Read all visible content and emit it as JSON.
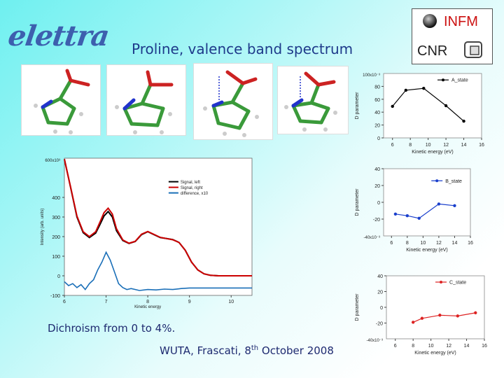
{
  "header": {
    "title": "Proline, valence band spectrum",
    "logo_text": "elettra"
  },
  "infm_box": {
    "infm_label": "INFM",
    "cnr_label": "CNR"
  },
  "bottom": {
    "dichroism": "Dichroism from 0 to 4%.",
    "footer_pre": "WUTA, Frascati, 8",
    "footer_sup": "th",
    "footer_post": " October 2008"
  },
  "colors": {
    "black_series": "#000000",
    "red_series": "#cc0000",
    "blue_series": "#1a6fb8"
  },
  "chart_data": [
    {
      "type": "line",
      "title": "",
      "xlabel": "Kinetic energy",
      "ylabel": "Intensity (arb. units)",
      "xlim": [
        6,
        10.5
      ],
      "ylim": [
        -100,
        600
      ],
      "y_multiplier": "600x10³",
      "x_ticks": [
        "6",
        "7",
        "8",
        "9",
        "10"
      ],
      "y_ticks": [
        "-100",
        "0",
        "100",
        "200",
        "300",
        "400"
      ],
      "legend": [
        "Signal, left",
        "Signal, right",
        "difference, x10"
      ],
      "series": [
        {
          "name": "Signal, left",
          "color": "#000000",
          "x": [
            6.0,
            6.15,
            6.3,
            6.45,
            6.6,
            6.75,
            6.85,
            6.95,
            7.05,
            7.15,
            7.25,
            7.4,
            7.55,
            7.7,
            7.85,
            8.0,
            8.15,
            8.3,
            8.45,
            8.6,
            8.75,
            8.9,
            9.05,
            9.2,
            9.35,
            9.5,
            9.7,
            9.9,
            10.2,
            10.5
          ],
          "y": [
            595,
            450,
            300,
            220,
            195,
            218,
            260,
            305,
            328,
            300,
            230,
            180,
            165,
            175,
            210,
            225,
            210,
            195,
            190,
            185,
            170,
            130,
            70,
            30,
            10,
            3,
            0,
            0,
            0,
            0
          ]
        },
        {
          "name": "Signal, right",
          "color": "#cc0000",
          "x": [
            6.0,
            6.15,
            6.3,
            6.45,
            6.6,
            6.75,
            6.85,
            6.95,
            7.05,
            7.15,
            7.25,
            7.4,
            7.55,
            7.7,
            7.85,
            8.0,
            8.15,
            8.3,
            8.45,
            8.6,
            8.75,
            8.9,
            9.05,
            9.2,
            9.35,
            9.5,
            9.7,
            9.9,
            10.2,
            10.5
          ],
          "y": [
            595,
            452,
            305,
            225,
            200,
            225,
            272,
            322,
            345,
            315,
            240,
            183,
            166,
            176,
            212,
            226,
            211,
            196,
            190,
            184,
            170,
            130,
            70,
            30,
            10,
            3,
            0,
            0,
            0,
            0
          ]
        },
        {
          "name": "difference, x10",
          "color": "#1a6fb8",
          "x": [
            6.0,
            6.1,
            6.2,
            6.3,
            6.4,
            6.5,
            6.6,
            6.7,
            6.8,
            6.9,
            7.0,
            7.1,
            7.2,
            7.3,
            7.4,
            7.5,
            7.6,
            7.8,
            8.0,
            8.2,
            8.4,
            8.6,
            8.8,
            9.0,
            9.5,
            10.0,
            10.5
          ],
          "y": [
            -30,
            -50,
            -40,
            -60,
            -45,
            -70,
            -40,
            -20,
            30,
            70,
            120,
            80,
            20,
            -40,
            -60,
            -70,
            -65,
            -75,
            -70,
            -72,
            -68,
            -70,
            -65,
            -62,
            -62,
            -62,
            -62
          ]
        }
      ]
    },
    {
      "type": "line",
      "title": "",
      "xlabel": "Kinetic energy (eV)",
      "ylabel": "D parameter",
      "y_multiplier": "100x10⁻³",
      "xlim": [
        5,
        16
      ],
      "ylim": [
        0,
        100
      ],
      "x_ticks": [
        "6",
        "8",
        "10",
        "12",
        "14",
        "16"
      ],
      "y_ticks": [
        "0",
        "20",
        "40",
        "60",
        "80"
      ],
      "legend": [
        "A_state"
      ],
      "series": [
        {
          "name": "A_state",
          "color": "#000000",
          "x": [
            6,
            7.5,
            9.5,
            12,
            14
          ],
          "y": [
            49,
            74,
            77,
            50,
            26
          ]
        }
      ]
    },
    {
      "type": "line",
      "title": "",
      "xlabel": "Kinetic energy (eV)",
      "ylabel": "D parameter",
      "y_multiplier": "-40x10⁻³",
      "xlim": [
        5,
        16
      ],
      "ylim": [
        -40,
        40
      ],
      "x_ticks": [
        "6",
        "8",
        "10",
        "12",
        "14",
        "16"
      ],
      "y_ticks": [
        "40",
        "20",
        "0",
        "-20"
      ],
      "legend": [
        "B_state"
      ],
      "series": [
        {
          "name": "B_state",
          "color": "#1a3fcc",
          "x": [
            6.5,
            8,
            9.5,
            12,
            14
          ],
          "y": [
            -14,
            -16,
            -19,
            -2,
            -4
          ]
        }
      ]
    },
    {
      "type": "line",
      "title": "",
      "xlabel": "Kinetic energy (eV)",
      "ylabel": "D parameter",
      "y_multiplier": "-40x10⁻³",
      "xlim": [
        5,
        16
      ],
      "ylim": [
        -40,
        40
      ],
      "x_ticks": [
        "6",
        "8",
        "10",
        "12",
        "14",
        "16"
      ],
      "y_ticks": [
        "40",
        "20",
        "0",
        "-20"
      ],
      "legend": [
        "C_state"
      ],
      "series": [
        {
          "name": "C_state",
          "color": "#dd2222",
          "x": [
            8,
            9,
            11,
            13,
            15
          ],
          "y": [
            -19,
            -14,
            -10,
            -11,
            -7
          ]
        }
      ]
    }
  ]
}
